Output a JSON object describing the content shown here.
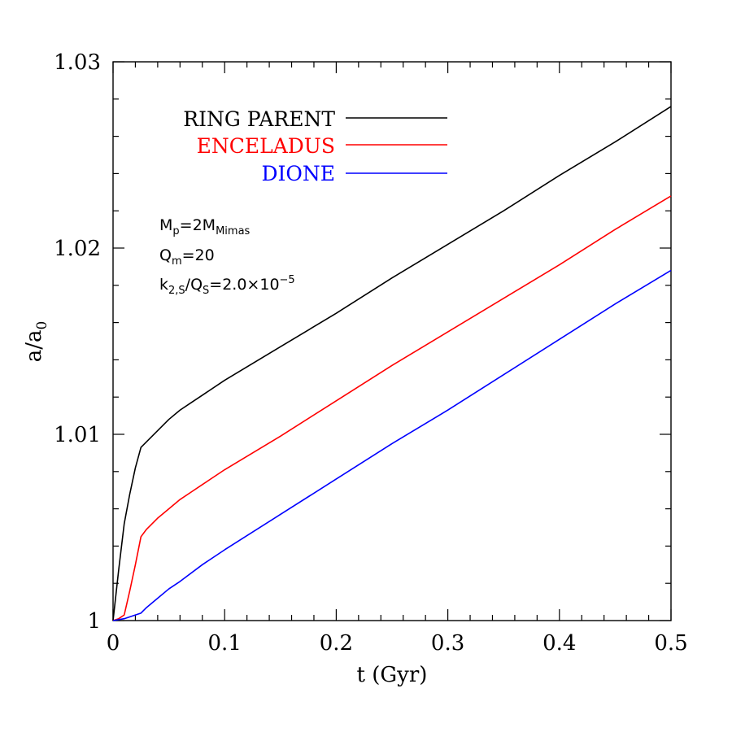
{
  "chart_data": {
    "type": "line",
    "xlabel": "t (Gyr)",
    "ylabel_main": "a/a",
    "ylabel_sub": "0",
    "xlim": [
      0,
      0.5
    ],
    "ylim": [
      1.0,
      1.03
    ],
    "x_ticks": [
      0,
      0.1,
      0.2,
      0.3,
      0.4,
      0.5
    ],
    "x_tick_labels": [
      "0",
      "0.1",
      "0.2",
      "0.3",
      "0.4",
      "0.5"
    ],
    "y_ticks": [
      1.0,
      1.01,
      1.02,
      1.03
    ],
    "y_tick_labels": [
      "1",
      "1.01",
      "1.02",
      "1.03"
    ],
    "grid": false,
    "legend_position": "top-left",
    "series": [
      {
        "name": "RING PARENT",
        "color": "#000000",
        "x": [
          0,
          0.005,
          0.01,
          0.015,
          0.02,
          0.025,
          0.03,
          0.04,
          0.05,
          0.06,
          0.07,
          0.08,
          0.1,
          0.15,
          0.2,
          0.25,
          0.3,
          0.35,
          0.4,
          0.45,
          0.5
        ],
        "y": [
          1.0,
          1.0027,
          1.0052,
          1.0068,
          1.0082,
          1.0093,
          1.0096,
          1.0102,
          1.0108,
          1.0113,
          1.0117,
          1.0121,
          1.0129,
          1.0147,
          1.0165,
          1.0184,
          1.0202,
          1.022,
          1.0239,
          1.0257,
          1.0276
        ]
      },
      {
        "name": "ENCELADUS",
        "color": "#ff0000",
        "x": [
          0,
          0.005,
          0.01,
          0.015,
          0.02,
          0.025,
          0.03,
          0.04,
          0.05,
          0.06,
          0.07,
          0.08,
          0.1,
          0.15,
          0.2,
          0.25,
          0.3,
          0.35,
          0.4,
          0.45,
          0.5
        ],
        "y": [
          1.0,
          1.0001,
          1.0003,
          1.0016,
          1.003,
          1.0045,
          1.0049,
          1.0055,
          1.006,
          1.0065,
          1.0069,
          1.0073,
          1.0081,
          1.0099,
          1.0118,
          1.0137,
          1.0155,
          1.0173,
          1.0191,
          1.021,
          1.0228
        ]
      },
      {
        "name": "DIONE",
        "color": "#0000ff",
        "x": [
          0,
          0.01,
          0.02,
          0.025,
          0.03,
          0.04,
          0.05,
          0.06,
          0.08,
          0.1,
          0.15,
          0.2,
          0.25,
          0.3,
          0.35,
          0.4,
          0.45,
          0.5
        ],
        "y": [
          1.0,
          1.0001,
          1.0003,
          1.0004,
          1.0007,
          1.0012,
          1.0017,
          1.0021,
          1.003,
          1.0038,
          1.0057,
          1.0076,
          1.0095,
          1.0113,
          1.0132,
          1.0151,
          1.017,
          1.0188
        ]
      }
    ],
    "annotations": [
      {
        "id": "mp",
        "main": "M",
        "sub": "p",
        "mid": "=2M",
        "sub2": "Mimas"
      },
      {
        "id": "qm",
        "main": "Q",
        "sub": "m",
        "mid": "=20"
      },
      {
        "id": "k2s",
        "main": "k",
        "sub": "2,S",
        "mid": "/Q",
        "sub2": "S",
        "tail": "=2.0×10",
        "sup": "−5"
      }
    ]
  }
}
